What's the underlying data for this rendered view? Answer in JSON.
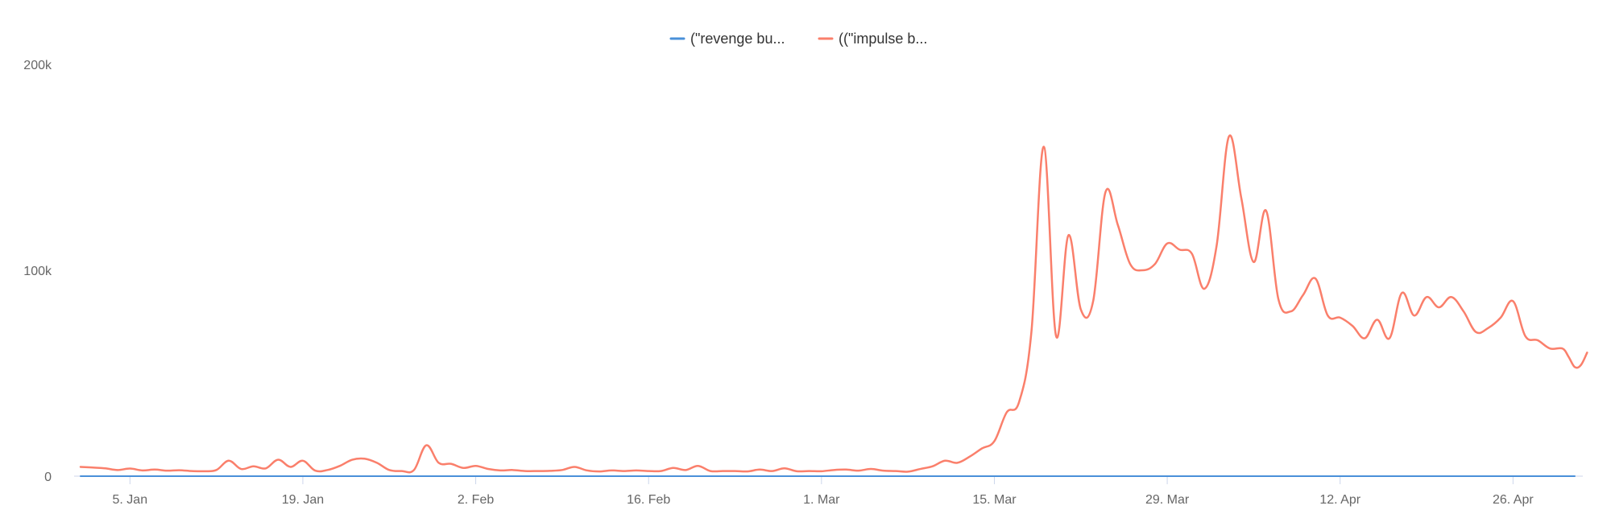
{
  "chart_data": {
    "type": "line",
    "title": "",
    "xlabel": "",
    "ylabel": "",
    "ylim": [
      0,
      200000
    ],
    "y_ticks": [
      {
        "value": 0,
        "label": "0"
      },
      {
        "value": 100000,
        "label": "100k"
      },
      {
        "value": 200000,
        "label": "200k"
      }
    ],
    "x_ticks": [
      {
        "day": 5,
        "label": "5. Jan"
      },
      {
        "day": 19,
        "label": "19. Jan"
      },
      {
        "day": 33,
        "label": "2. Feb"
      },
      {
        "day": 47,
        "label": "16. Feb"
      },
      {
        "day": 61,
        "label": "1. Mar"
      },
      {
        "day": 75,
        "label": "15. Mar"
      },
      {
        "day": 89,
        "label": "29. Mar"
      },
      {
        "day": 103,
        "label": "12. Apr"
      },
      {
        "day": 117,
        "label": "26. Apr"
      }
    ],
    "x_range": [
      1,
      122
    ],
    "grid": {
      "horizontal": false,
      "vertical": false
    },
    "legend_position": "top-center",
    "series": [
      {
        "name": "(\"revenge bu...",
        "color": "#4a90d9",
        "points": [
          [
            1,
            0
          ],
          [
            122,
            0
          ]
        ]
      },
      {
        "name": "((\"impulse b...",
        "color": "#fa7f6b",
        "points": [
          [
            1,
            4500
          ],
          [
            2,
            4200
          ],
          [
            3,
            3800
          ],
          [
            4,
            3000
          ],
          [
            5,
            3700
          ],
          [
            6,
            2800
          ],
          [
            7,
            3200
          ],
          [
            8,
            2700
          ],
          [
            9,
            2900
          ],
          [
            10,
            2500
          ],
          [
            11,
            2400
          ],
          [
            12,
            3000
          ],
          [
            13,
            7500
          ],
          [
            14,
            3500
          ],
          [
            15,
            4800
          ],
          [
            16,
            3800
          ],
          [
            17,
            8000
          ],
          [
            18,
            4500
          ],
          [
            19,
            7500
          ],
          [
            20,
            2700
          ],
          [
            21,
            3000
          ],
          [
            22,
            5000
          ],
          [
            23,
            8000
          ],
          [
            24,
            8500
          ],
          [
            25,
            6500
          ],
          [
            26,
            3000
          ],
          [
            27,
            2500
          ],
          [
            28,
            3000
          ],
          [
            29,
            15000
          ],
          [
            30,
            6500
          ],
          [
            31,
            6000
          ],
          [
            32,
            4000
          ],
          [
            33,
            5000
          ],
          [
            34,
            3500
          ],
          [
            35,
            2800
          ],
          [
            36,
            3000
          ],
          [
            37,
            2500
          ],
          [
            38,
            2500
          ],
          [
            39,
            2600
          ],
          [
            40,
            3000
          ],
          [
            41,
            4500
          ],
          [
            42,
            2800
          ],
          [
            43,
            2300
          ],
          [
            44,
            2800
          ],
          [
            45,
            2500
          ],
          [
            46,
            2800
          ],
          [
            47,
            2500
          ],
          [
            48,
            2500
          ],
          [
            49,
            4000
          ],
          [
            50,
            3000
          ],
          [
            51,
            5000
          ],
          [
            52,
            2500
          ],
          [
            53,
            2500
          ],
          [
            54,
            2500
          ],
          [
            55,
            2300
          ],
          [
            56,
            3200
          ],
          [
            57,
            2500
          ],
          [
            58,
            3800
          ],
          [
            59,
            2400
          ],
          [
            60,
            2500
          ],
          [
            61,
            2400
          ],
          [
            62,
            3000
          ],
          [
            63,
            3200
          ],
          [
            64,
            2700
          ],
          [
            65,
            3500
          ],
          [
            66,
            2700
          ],
          [
            67,
            2500
          ],
          [
            68,
            2200
          ],
          [
            69,
            3500
          ],
          [
            70,
            4800
          ],
          [
            71,
            7500
          ],
          [
            72,
            6500
          ],
          [
            73,
            9500
          ],
          [
            74,
            13500
          ],
          [
            75,
            17000
          ],
          [
            76,
            31000
          ],
          [
            77,
            36000
          ],
          [
            78,
            70000
          ],
          [
            79,
            160000
          ],
          [
            80,
            68000
          ],
          [
            81,
            117000
          ],
          [
            82,
            81000
          ],
          [
            83,
            85000
          ],
          [
            84,
            138000
          ],
          [
            85,
            122000
          ],
          [
            86,
            103000
          ],
          [
            87,
            100000
          ],
          [
            88,
            103000
          ],
          [
            89,
            113000
          ],
          [
            90,
            110000
          ],
          [
            91,
            108000
          ],
          [
            92,
            91000
          ],
          [
            93,
            112000
          ],
          [
            94,
            165000
          ],
          [
            95,
            135000
          ],
          [
            96,
            104000
          ],
          [
            97,
            129000
          ],
          [
            98,
            86000
          ],
          [
            99,
            80000
          ],
          [
            100,
            88000
          ],
          [
            101,
            96000
          ],
          [
            102,
            78000
          ],
          [
            103,
            77000
          ],
          [
            104,
            73000
          ],
          [
            105,
            67000
          ],
          [
            106,
            76000
          ],
          [
            107,
            67000
          ],
          [
            108,
            89000
          ],
          [
            109,
            78000
          ],
          [
            110,
            87000
          ],
          [
            111,
            82000
          ],
          [
            112,
            87000
          ],
          [
            113,
            80000
          ],
          [
            114,
            70000
          ],
          [
            115,
            72000
          ],
          [
            116,
            77000
          ],
          [
            117,
            85000
          ],
          [
            118,
            68000
          ],
          [
            119,
            66000
          ],
          [
            120,
            62000
          ],
          [
            121,
            62000
          ],
          [
            121.5,
            58000
          ],
          [
            122,
            53000
          ],
          [
            122.5,
            54000
          ],
          [
            123,
            60000
          ]
        ]
      }
    ]
  }
}
